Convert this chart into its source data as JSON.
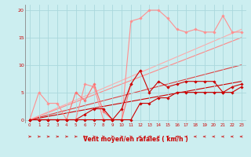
{
  "background_color": "#cceef0",
  "grid_color": "#aad8dc",
  "xlabel": "Vent moyen/en rafales ( km/h )",
  "ylabel_ticks": [
    0,
    5,
    10,
    15,
    20
  ],
  "xlim": [
    -0.5,
    23.5
  ],
  "ylim": [
    -0.5,
    21
  ],
  "x_ticks": [
    0,
    1,
    2,
    3,
    4,
    5,
    6,
    7,
    8,
    9,
    10,
    11,
    12,
    13,
    14,
    15,
    16,
    17,
    18,
    19,
    20,
    21,
    22,
    23
  ],
  "series": [
    {
      "x": [
        0,
        1,
        2,
        3,
        4,
        5,
        6,
        7,
        8,
        9,
        10,
        11,
        12,
        13,
        14,
        15,
        16,
        17,
        18,
        19,
        20,
        21,
        22,
        23
      ],
      "y": [
        0,
        0,
        0,
        0,
        0,
        0,
        0,
        0,
        0,
        0,
        0,
        0,
        3,
        3,
        4,
        4,
        5,
        5,
        5,
        5,
        5,
        5,
        5,
        6
      ],
      "color": "#cc0000",
      "lw": 0.8,
      "marker": "D",
      "ms": 1.8,
      "zorder": 5
    },
    {
      "x": [
        0,
        1,
        2,
        3,
        4,
        5,
        6,
        7,
        8,
        9,
        10,
        11,
        12,
        13,
        14,
        15,
        16,
        17,
        18,
        19,
        20,
        21,
        22,
        23
      ],
      "y": [
        0,
        0,
        0,
        0,
        0,
        0,
        1,
        2,
        2,
        0,
        2,
        6.5,
        9,
        5,
        7,
        6,
        6.5,
        7,
        7,
        7,
        7,
        5,
        6,
        6.5
      ],
      "color": "#cc0000",
      "lw": 0.8,
      "marker": "D",
      "ms": 1.8,
      "zorder": 4
    },
    {
      "comment": "pink line early spike at x=5 y=5, x=6 y=3.5, x=7 y=6.5, x=8 y=1.5, x=11 y=6.5",
      "x": [
        0,
        1,
        2,
        3,
        4,
        5,
        6,
        7,
        8,
        9,
        10,
        11
      ],
      "y": [
        0,
        0,
        0,
        0,
        0,
        5,
        3.5,
        6.5,
        1.5,
        0,
        0,
        6.5
      ],
      "color": "#ff7070",
      "lw": 0.8,
      "marker": "D",
      "ms": 1.8,
      "zorder": 3
    },
    {
      "x": [
        0,
        1,
        2,
        3,
        4,
        5,
        6,
        7,
        8,
        9,
        10,
        11,
        12,
        13,
        14,
        15,
        16,
        17,
        18,
        19,
        20,
        21,
        22,
        23
      ],
      "y": [
        0,
        5,
        3,
        3,
        0,
        0,
        6.5,
        6,
        0,
        0,
        0,
        18,
        18.5,
        20,
        20,
        18.5,
        16.5,
        16,
        16.5,
        16,
        16,
        19,
        16,
        16
      ],
      "color": "#ff9090",
      "lw": 0.8,
      "marker": "D",
      "ms": 1.8,
      "zorder": 2
    },
    {
      "x": [
        0,
        23
      ],
      "y": [
        0,
        7
      ],
      "color": "#cc0000",
      "lw": 0.8,
      "marker": null,
      "ms": 0,
      "zorder": 1
    },
    {
      "x": [
        0,
        23
      ],
      "y": [
        0,
        10
      ],
      "color": "#dd4444",
      "lw": 0.8,
      "marker": null,
      "ms": 0,
      "zorder": 1
    },
    {
      "x": [
        0,
        23
      ],
      "y": [
        0,
        15
      ],
      "color": "#ff8888",
      "lw": 0.8,
      "marker": null,
      "ms": 0,
      "zorder": 1
    },
    {
      "x": [
        0,
        23
      ],
      "y": [
        0,
        16.5
      ],
      "color": "#ffaaaa",
      "lw": 0.8,
      "marker": null,
      "ms": 0,
      "zorder": 1
    }
  ],
  "arrow_color": "#cc0000",
  "arrow_xs_right": [
    0,
    1,
    2,
    3,
    4,
    5,
    6,
    7,
    8,
    9,
    10,
    11
  ],
  "arrow_xs_left": [
    12,
    13,
    14,
    15,
    16,
    17,
    18,
    19,
    20,
    21,
    22,
    23
  ]
}
